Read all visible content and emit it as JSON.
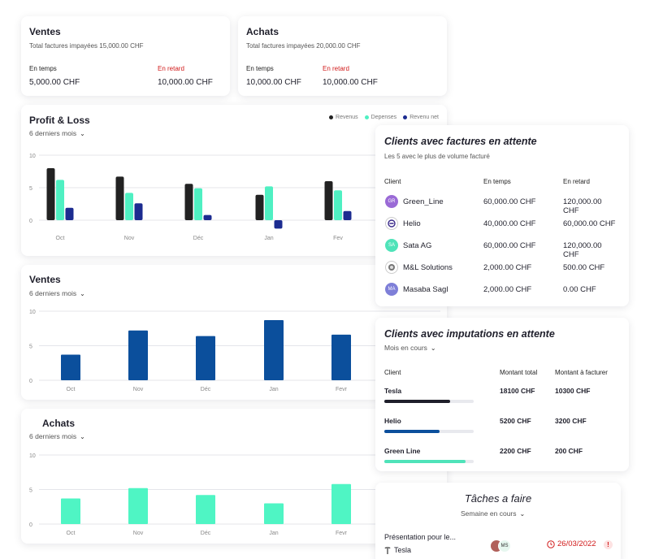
{
  "ventes_summary": {
    "title": "Ventes",
    "unpaid_label": "Total factures impayées",
    "unpaid_value": "15,000.00 CHF",
    "on_time_label": "En temps",
    "on_time_value": "5,000.00 CHF",
    "late_label": "En retard",
    "late_value": "10,000.00 CHF"
  },
  "achats_summary": {
    "title": "Achats",
    "unpaid_label": "Total factures impayées",
    "unpaid_value": "20,000.00 CHF",
    "on_time_label": "En temps",
    "on_time_value": "10,000.00 CHF",
    "late_label": "En retard",
    "late_value": "10,000.00 CHF"
  },
  "profit_loss": {
    "title": "Profit & Loss",
    "period": "6 derniers mois",
    "legend": [
      "Revenus",
      "Depenses",
      "Revenu net"
    ]
  },
  "ventes_chart": {
    "title": "Ventes",
    "period": "6 derniers mois"
  },
  "achats_chart": {
    "title": "Achats",
    "period": "6 derniers mois"
  },
  "pending_invoices": {
    "title": "Clients avec factures en attente",
    "subtitle": "Les 5 avec le plus de volume facturé",
    "col_client": "Client",
    "col_on_time": "En temps",
    "col_late": "En retard",
    "rows": [
      {
        "client": "Green_Line",
        "initials": "GR",
        "color": "#9a6ad6",
        "on_time": "60,000.00 CHF",
        "late": "120,000.00 CHF"
      },
      {
        "client": "Helio",
        "initials": "",
        "color": "#ffffff",
        "on_time": "40,000.00 CHF",
        "late": "60,000.00 CHF"
      },
      {
        "client": "Sata AG",
        "initials": "SA",
        "color": "#4fe3b9",
        "on_time": "60,000.00 CHF",
        "late": "120,000.00 CHF"
      },
      {
        "client": "M&L Solutions",
        "initials": "",
        "color": "#ffffff",
        "on_time": "2,000.00 CHF",
        "late": "500.00 CHF"
      },
      {
        "client": "Masaba Sagl",
        "initials": "MA",
        "color": "#7e7fd8",
        "on_time": "2,000.00 CHF",
        "late": "0.00 CHF"
      }
    ]
  },
  "pending_imputations": {
    "title": "Clients avec imputations en attente",
    "period": "Mois en cours",
    "col_client": "Client",
    "col_total": "Montant total",
    "col_to_invoice": "Montant à facturer",
    "rows": [
      {
        "client": "Tesla",
        "total": "18100 CHF",
        "to_invoice": "10300 CHF",
        "progress": 0.74,
        "color": "#1f1f2b"
      },
      {
        "client": "Helio",
        "total": "5200 CHF",
        "to_invoice": "3200 CHF",
        "progress": 0.62,
        "color": "#0b4f9c"
      },
      {
        "client": "Green Line",
        "total": "2200 CHF",
        "to_invoice": "200 CHF",
        "progress": 0.91,
        "color": "#4fe3b9"
      }
    ]
  },
  "tasks": {
    "title": "Tâches a faire",
    "period": "Semaine en cours",
    "item": {
      "title": "Présentation pour le...",
      "client": "Tesla",
      "date": "26/03/2022",
      "avatar": "MS"
    }
  },
  "chart_data": [
    {
      "type": "bar",
      "title": "Profit & Loss",
      "categories": [
        "Oct",
        "Nov",
        "Déc",
        "Jan",
        "Fev"
      ],
      "ylim": [
        0,
        10
      ],
      "yticks": [
        0,
        5,
        10
      ],
      "series": [
        {
          "name": "Revenus",
          "color": "#222222",
          "values": [
            8,
            6.7,
            5.6,
            3.9,
            6
          ]
        },
        {
          "name": "Depenses",
          "color": "#4ff0c2",
          "values": [
            6.2,
            4.2,
            4.9,
            5.2,
            4.6
          ]
        },
        {
          "name": "Revenu net",
          "color": "#1c2c90",
          "values": [
            1.9,
            2.6,
            0.8,
            -1.3,
            1.4
          ]
        }
      ]
    },
    {
      "type": "bar",
      "title": "Ventes",
      "categories": [
        "Oct",
        "Nov",
        "Déc",
        "Jan",
        "Fevr"
      ],
      "ylim": [
        0,
        10
      ],
      "yticks": [
        0,
        5,
        10
      ],
      "series": [
        {
          "name": "Ventes",
          "color": "#0b4f9c",
          "values": [
            3.7,
            7.2,
            6.4,
            8.7,
            6.6
          ]
        }
      ]
    },
    {
      "type": "bar",
      "title": "Achats",
      "categories": [
        "Oct",
        "Nov",
        "Déc",
        "Jan",
        "Fevr"
      ],
      "ylim": [
        0,
        10
      ],
      "yticks": [
        0,
        5,
        10
      ],
      "series": [
        {
          "name": "Achats",
          "color": "#4ff5c4",
          "values": [
            3.7,
            5.2,
            4.2,
            3.0,
            5.8
          ]
        }
      ]
    }
  ]
}
